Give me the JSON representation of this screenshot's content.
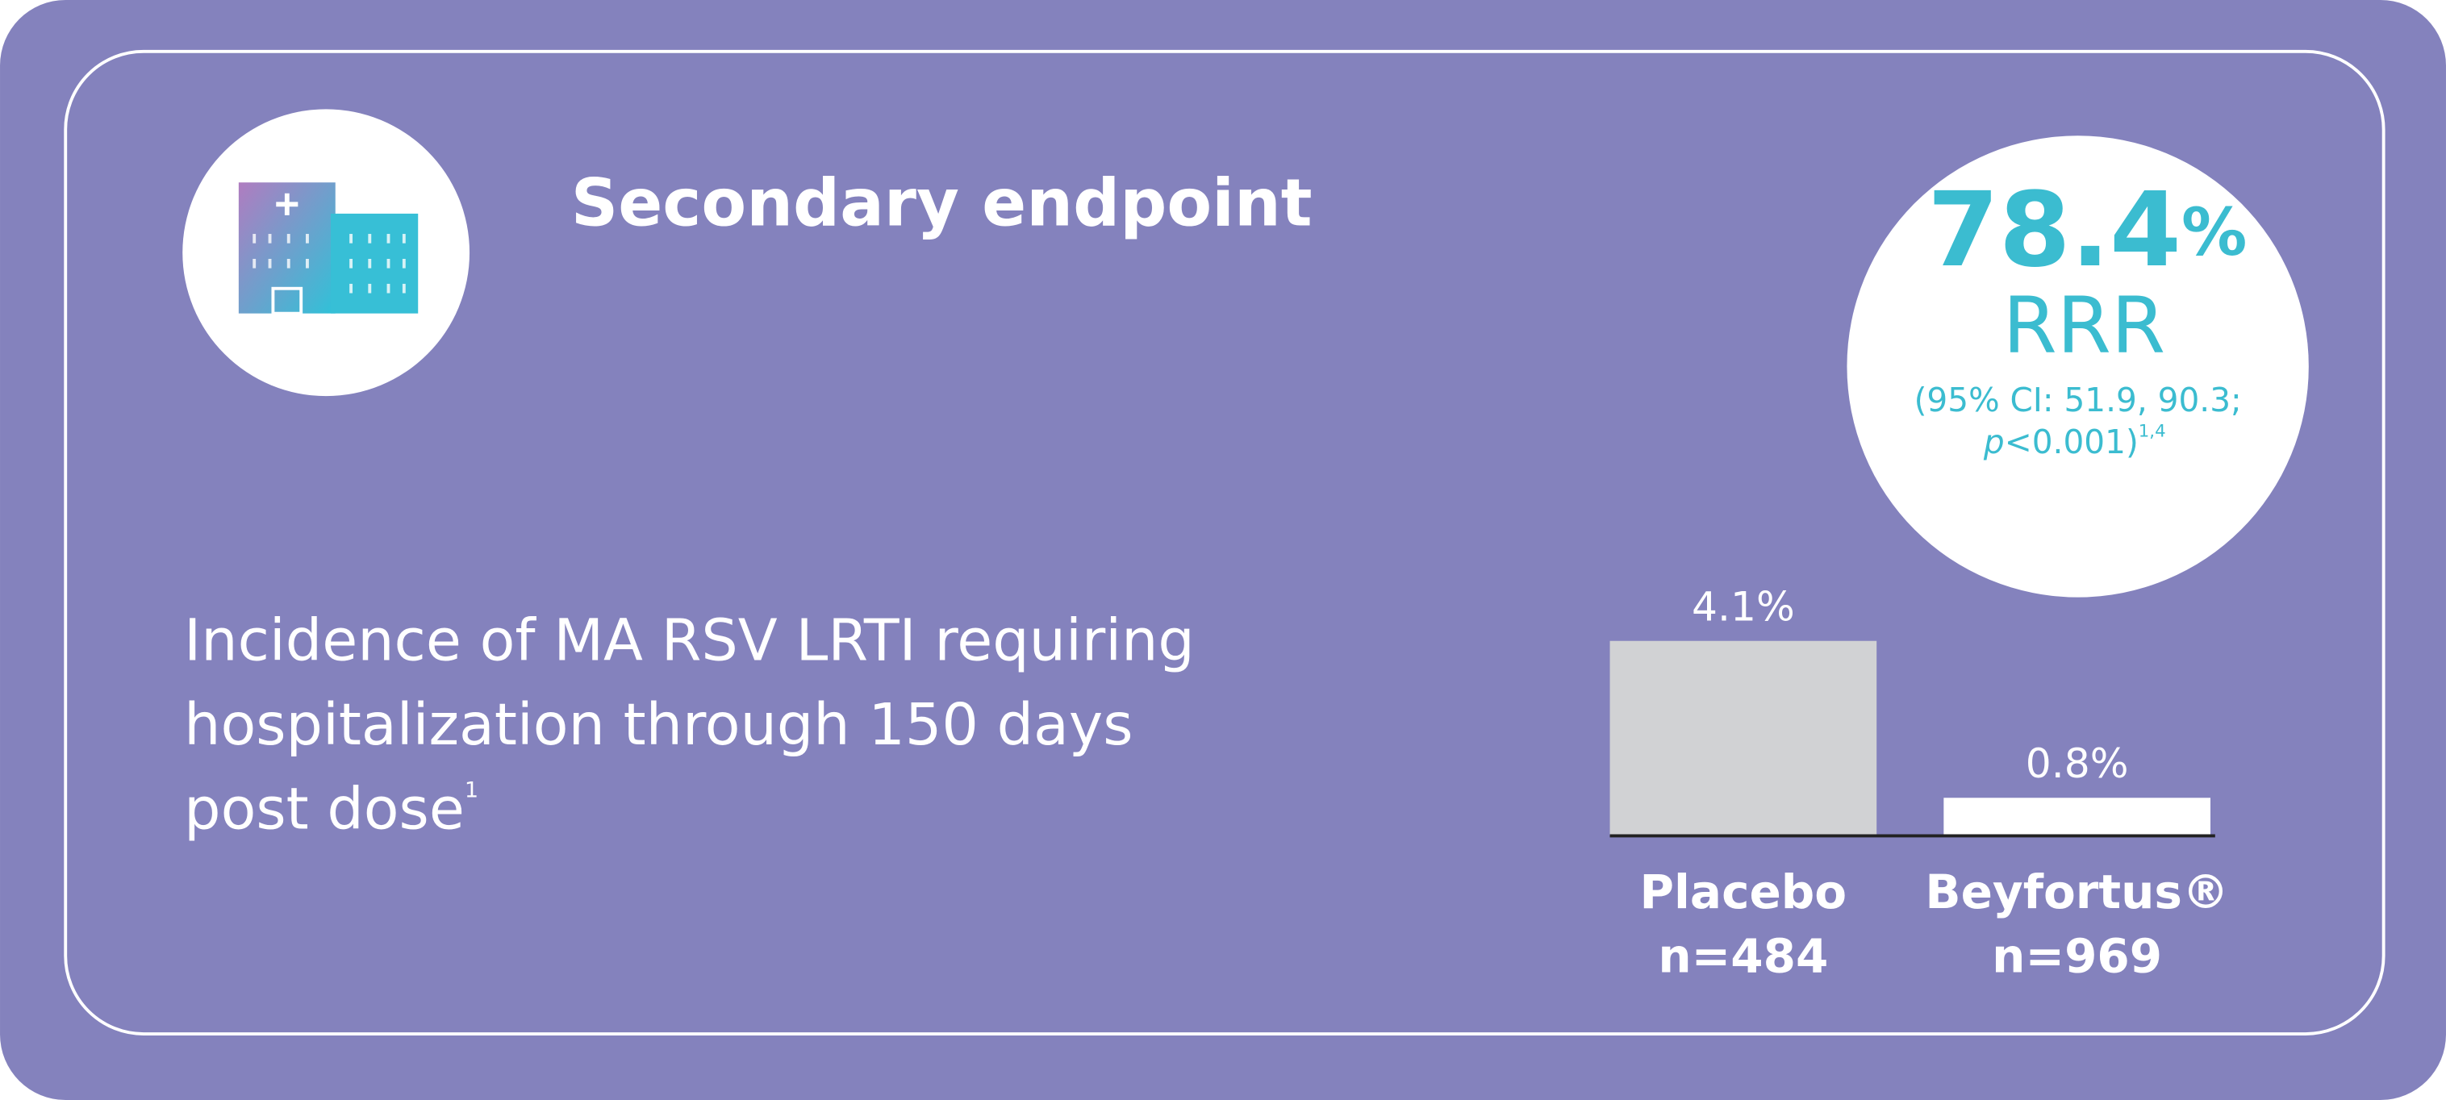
{
  "chart_data": {
    "type": "bar",
    "title": "Secondary endpoint",
    "description_lines": [
      "Incidence of MA RSV LRTI requiring",
      "hospitalization through 150 days",
      "post dose"
    ],
    "description_ref": "1",
    "highlight": {
      "value": "78.4",
      "unit": "%",
      "label": "RRR",
      "ci": "(95% CI: 51.9, 90.3;",
      "p_symbol": "p",
      "p_value": "<0.001)",
      "ref": "1,4"
    },
    "categories": [
      "Placebo",
      "Beyfortus®"
    ],
    "category_notes": [
      "n=484",
      "n=969"
    ],
    "values": [
      4.1,
      0.8
    ],
    "value_labels": [
      "4.1%",
      "0.8%"
    ],
    "colors": [
      "#d1d2d4",
      "#ffffff"
    ]
  }
}
